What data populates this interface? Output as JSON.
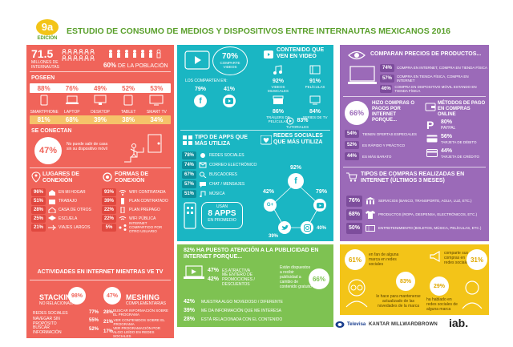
{
  "badge": {
    "number": "9a",
    "edition": "EDICIÓN"
  },
  "title": "ESTUDIO DE CONSUMO DE MEDIOS Y DISPOSITIVOS ENTRE INTERNAUTAS MEXICANOS 2016",
  "colors": {
    "red": "#f0645a",
    "teal": "#1ab6c3",
    "purple": "#9b6ab8",
    "green": "#7ec252",
    "yellow": "#f3c418",
    "title_green": "#5aa02c"
  },
  "internautas": {
    "value": "71.5",
    "label": "MILLONES DE INTERNAUTAS",
    "poblacion_value": "60%",
    "poblacion_label": "DE LA POBLACIÓN"
  },
  "poseen": {
    "heading": "POSEEN",
    "top_values": [
      "88%",
      "76%",
      "49%",
      "52%",
      "53%"
    ],
    "devices": [
      "SMARTPHONE",
      "LAPTOP",
      "DESKTOP",
      "TABLET",
      "SMART TV"
    ],
    "bottom_values": [
      "81%",
      "68%",
      "39%",
      "38%",
      "34%"
    ]
  },
  "se_conectan": {
    "heading": "SE CONECTAN",
    "value": "47%",
    "text": "No puede salir de casa sin su dispositivo móvil"
  },
  "lugares": {
    "heading": "LUGARES DE CONEXIÓN",
    "items": [
      {
        "value": "96%",
        "label": "EN MI HOGAR"
      },
      {
        "value": "51%",
        "label": "TRABAJO"
      },
      {
        "value": "28%",
        "label": "CASA DE OTROS"
      },
      {
        "value": "25%",
        "label": "ESCUELA"
      },
      {
        "value": "21%",
        "label": "VIAJES LARGOS"
      }
    ]
  },
  "formas": {
    "heading": "FORMAS DE CONEXIÓN",
    "items": [
      {
        "value": "93%",
        "label": "WIFI CONTRATADA"
      },
      {
        "value": "39%",
        "label": "PLAN CONTRATADO"
      },
      {
        "value": "22%",
        "label": "PLAN PREPAGO"
      },
      {
        "value": "22%",
        "label": "WIFI PÚBLICA"
      },
      {
        "value": "5%",
        "label": "INTERNET COMPARTIDO POR OTRO USUARIO"
      }
    ]
  },
  "actividades": {
    "heading": "ACTIVIDADES EN INTERNET MIENTRAS VE TV",
    "stacking": {
      "title": "STACKING",
      "subtitle": "NO RELACIONADAS",
      "value": "98%",
      "items": [
        {
          "label": "REDES SOCIALES",
          "value": "77%"
        },
        {
          "label": "NAVEGAR SIN PROPÓSITO",
          "value": "55%"
        },
        {
          "label": "BUSCAR INFORMACIÓN",
          "value": "52%"
        }
      ]
    },
    "meshing": {
      "title": "MESHING",
      "subtitle": "COMPLEMENTARIAS",
      "value": "47%",
      "items": [
        {
          "value": "28%",
          "label": "BUSCAR INFORMACIÓN SOBRE EL PROGRAMA"
        },
        {
          "value": "21%",
          "label": "VER CONTENIDOS SOBRE EL PROGRAMA"
        },
        {
          "value": "17%",
          "label": "VER PROGRAMACIÓN POR ALGO LEÍDO EN REDES SOCIALES"
        }
      ]
    }
  },
  "video": {
    "pct": "70%",
    "pct_label": "COMPARTE VIDEOS",
    "comparten_label": "LOS COMPARTEN EN:",
    "share": [
      {
        "value": "79%"
      },
      {
        "value": "41%"
      }
    ],
    "heading": "CONTENIDO QUE VEN EN VIDEO",
    "items": [
      {
        "value": "92%",
        "label": "VIDEOS MUSICALES"
      },
      {
        "value": "91%",
        "label": "PELÍCULAS"
      },
      {
        "value": "86%",
        "label": "TRÁILERS DE PELÍCULAS"
      },
      {
        "value": "84%",
        "label": "SERIES DE TV"
      },
      {
        "value": "83%",
        "label": "TUTORIALES"
      }
    ]
  },
  "apps": {
    "heading": "TIPO DE APPS QUE MÁS UTILIZA",
    "items": [
      {
        "value": "78%",
        "label": "REDES SOCIALES"
      },
      {
        "value": "74%",
        "label": "CORREO ELECTRÓNICO"
      },
      {
        "value": "67%",
        "label": "BUSCADORES"
      },
      {
        "value": "57%",
        "label": "CHAT / MENSAJES"
      },
      {
        "value": "51%",
        "label": "MÚSICA"
      }
    ],
    "count": "8 APPS",
    "count_label": "EN PROMEDIO",
    "usan": "USAN"
  },
  "redes": {
    "heading": "REDES SOCIALES QUE MÁS UTILIZA",
    "values": [
      "92%",
      "42%",
      "79%",
      "39%",
      "40%"
    ]
  },
  "precios": {
    "heading": "COMPARAN PRECIOS DE PRODUCTOS...",
    "items": [
      {
        "value": "74%",
        "label": "COMPRA EN INTERNET, COMPRA EN TIENDA FÍSICA"
      },
      {
        "value": "57%",
        "label": "COMPRA EN TIENDA FÍSICA, COMPRA EN INTERNET"
      },
      {
        "value": "46%",
        "label": "COMPRA EN DISPOSITIVO MÓVIL ESTANDO EN TIENDA FÍSICA"
      }
    ]
  },
  "compras": {
    "hizo_value": "66%",
    "hizo_label": "HIZO COMPRAS O PAGOS POR INTERNET PORQUE...",
    "reasons": [
      {
        "value": "54%",
        "label": "TIENEN OFERTAS ESPECIALES"
      },
      {
        "value": "52%",
        "label": "ES RÁPIDO Y PRÁCTICO"
      },
      {
        "value": "44%",
        "label": "ES MÁS BARATO"
      }
    ],
    "metodos_heading": "MÉTODOS DE PAGO EN COMPRAS ONLINE",
    "metodos": [
      {
        "value": "80%",
        "label": "PAYPAL"
      },
      {
        "value": "56%",
        "label": "TARJETA DE DÉBITO"
      },
      {
        "value": "44%",
        "label": "TARJETA DE CRÉDITO"
      }
    ]
  },
  "tipos_compras": {
    "heading": "TIPOS DE COMPRAS REALIZADAS EN INTERNET (ÚLTIMOS 3 MESES)",
    "items": [
      {
        "value": "76%",
        "label": "SERVICIOS (BANCO, TRANSPORTE, AGUA, LUZ, ETC.)"
      },
      {
        "value": "68%",
        "label": "PRODUCTOS (ROPA, DESPENSA, ELECTRÓNICOS, ETC.)"
      },
      {
        "value": "50%",
        "label": "ENTRETENIMIENTO (BOLETOS, MÚSICA, PELÍCULAS, ETC.)"
      }
    ]
  },
  "atencion": {
    "heading": "82% HA PUESTO ATENCIÓN A LA PUBLICIDAD EN INTERNET PORQUE...",
    "top": [
      {
        "value": "47%",
        "label": "ES ATRACTIVA"
      },
      {
        "value": "42%",
        "label": "ME ENTERO DE PROMOCIONES / DESCUENTOS"
      }
    ],
    "side_text": "Están dispuestos a recibir publicidad a cambio de contenido gratuito",
    "side_value": "66%",
    "bottom": [
      {
        "value": "42%",
        "label": "MUESTRA ALGO NOVEDOSO / DIFERENTE"
      },
      {
        "value": "39%",
        "label": "ME DA INFORMACIÓN QUE ME INTERESA"
      },
      {
        "value": "28%",
        "label": "ESTÁ RELACIONADA CON EL CONTENIDO"
      }
    ]
  },
  "redes_marcas": {
    "left_value": "61%",
    "left_text": "en fan de alguna marca en redes sociales",
    "center_value": "83%",
    "center_text": "le hace para mantenerse actualizado de las novedades de la marca",
    "right_text": "comparte sus compras en redes sociales",
    "right_value": "31%",
    "bottom_value": "29%",
    "bottom_text": "ha hablado en redes sociales de alguna marca"
  },
  "logos": {
    "televisa": "Televisa",
    "kantar": "KANTAR MILLWARDBROWN",
    "iab": "iab."
  }
}
